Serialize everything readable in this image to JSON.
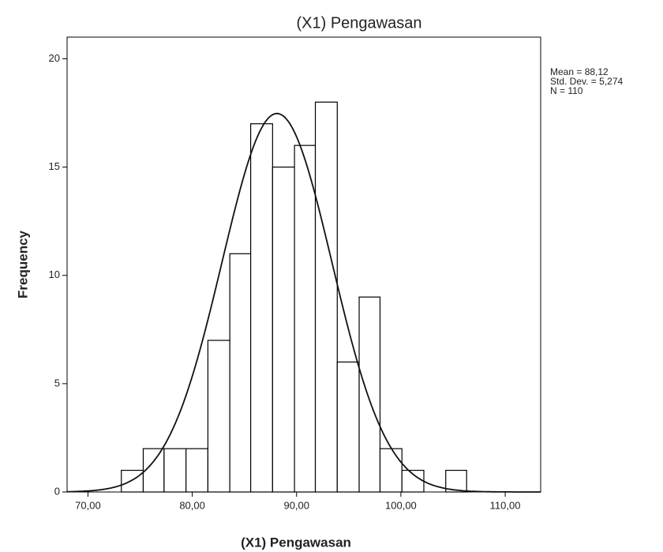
{
  "chart_data": {
    "type": "histogram",
    "title": "(X1) Pengawasan",
    "x_label": "(X1) Pengawasan",
    "y_label": "Frequency",
    "bins": [
      73.2,
      75.3,
      77.3,
      79.4,
      81.5,
      83.6,
      85.6,
      87.7,
      89.8,
      91.8,
      93.9,
      96.0,
      98.0,
      100.1,
      102.2,
      104.3,
      106.3
    ],
    "counts": [
      1,
      2,
      2,
      2,
      7,
      11,
      17,
      15,
      16,
      18,
      6,
      9,
      2,
      1,
      0,
      1
    ],
    "color": "#ffffff",
    "xlim": [
      68,
      113.4
    ],
    "xticks": [
      {
        "value": 70,
        "label": "70,00"
      },
      {
        "value": 80,
        "label": "80,00"
      },
      {
        "value": 90,
        "label": "90,00"
      },
      {
        "value": 100,
        "label": "100,00"
      },
      {
        "value": 110,
        "label": "110,00"
      }
    ],
    "ylim": [
      0,
      21
    ],
    "yticks": [
      0,
      5,
      10,
      15,
      20
    ],
    "stats": [
      {
        "value": 88.12,
        "label": "Mean = 88,12"
      },
      {
        "value": 5.274,
        "label": "Std. Dev. = 5,274"
      },
      {
        "value": 110,
        "label": "N = 110"
      }
    ],
    "normal_curve": true
  }
}
